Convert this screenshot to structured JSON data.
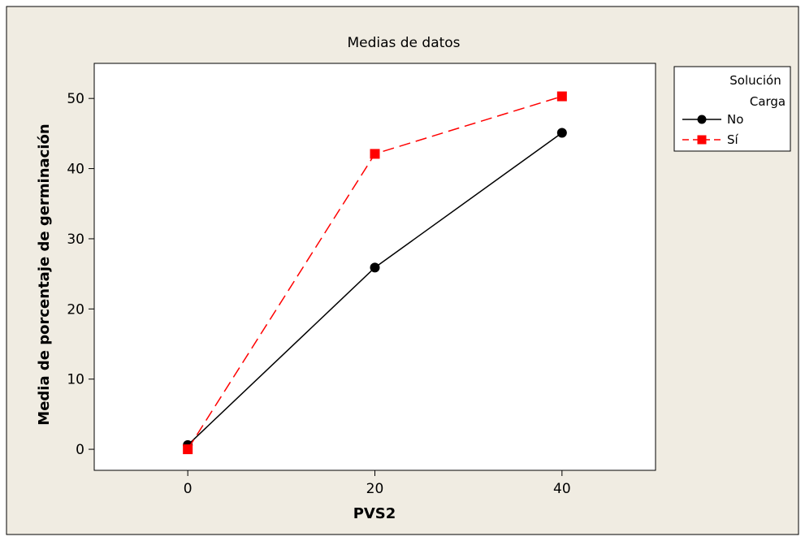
{
  "chart_data": {
    "type": "line",
    "title": "Medias de datos",
    "xlabel": "PVS2",
    "ylabel": "Media de porcentaje de germinación",
    "x": [
      0,
      20,
      40
    ],
    "xticks": [
      "0",
      "20",
      "40"
    ],
    "yticks": [
      "0",
      "10",
      "20",
      "30",
      "40",
      "50"
    ],
    "xlim": [
      -10,
      50
    ],
    "ylim": [
      -3,
      55
    ],
    "grid": false,
    "legend_title": [
      "Solución",
      "Carga"
    ],
    "legend_position": "right",
    "series": [
      {
        "name": "No",
        "values": [
          0.6,
          25.9,
          45.1
        ],
        "color": "#000000",
        "marker": "circle",
        "dash": "solid"
      },
      {
        "name": "Sí",
        "values": [
          0.0,
          42.1,
          50.3
        ],
        "color": "#ff0000",
        "marker": "square",
        "dash": "dashed"
      }
    ],
    "colors": {
      "background": "#f0ece2",
      "plot_area": "#ffffff",
      "border": "#000000"
    }
  }
}
